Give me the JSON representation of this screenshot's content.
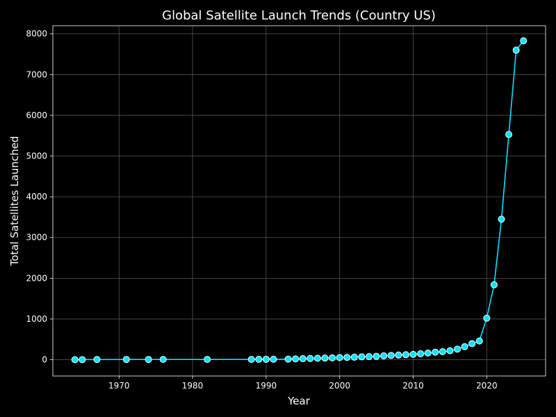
{
  "chart_data": {
    "type": "line",
    "title": "Global Satellite Launch Trends (Country US)",
    "xlabel": "Year",
    "ylabel": "Total Satellites Launched",
    "xlim": [
      1961,
      2028
    ],
    "ylim": [
      -400,
      8200
    ],
    "xticks": [
      1970,
      1980,
      1990,
      2000,
      2010,
      2020
    ],
    "yticks": [
      0,
      1000,
      2000,
      3000,
      4000,
      5000,
      6000,
      7000,
      8000
    ],
    "grid": true,
    "colors": {
      "background": "#000000",
      "line": "#00e5ff",
      "marker_fill": "#00e5ff",
      "marker_edge": "#ffffff",
      "grid": "#555555",
      "axis": "#ffffff",
      "text": "#ffffff"
    },
    "series": [
      {
        "x": [
          1964,
          1965,
          1967,
          1971,
          1974,
          1976,
          1982,
          1988,
          1989,
          1990,
          1991,
          1993,
          1994,
          1995,
          1996,
          1997,
          1998,
          1999,
          2000,
          2001,
          2002,
          2003,
          2004,
          2005,
          2006,
          2007,
          2008,
          2009,
          2010,
          2011,
          2012,
          2013,
          2014,
          2015,
          2016,
          2017,
          2018,
          2019,
          2020,
          2021,
          2022,
          2023,
          2024,
          2025
        ],
        "y": [
          1,
          2,
          5,
          6,
          6,
          7,
          7,
          8,
          9,
          10,
          12,
          14,
          20,
          26,
          31,
          35,
          41,
          46,
          52,
          57,
          62,
          70,
          76,
          83,
          94,
          105,
          113,
          122,
          131,
          145,
          163,
          185,
          197,
          221,
          260,
          320,
          395,
          460,
          1020,
          1840,
          3450,
          5530,
          7600,
          7830
        ]
      }
    ]
  }
}
